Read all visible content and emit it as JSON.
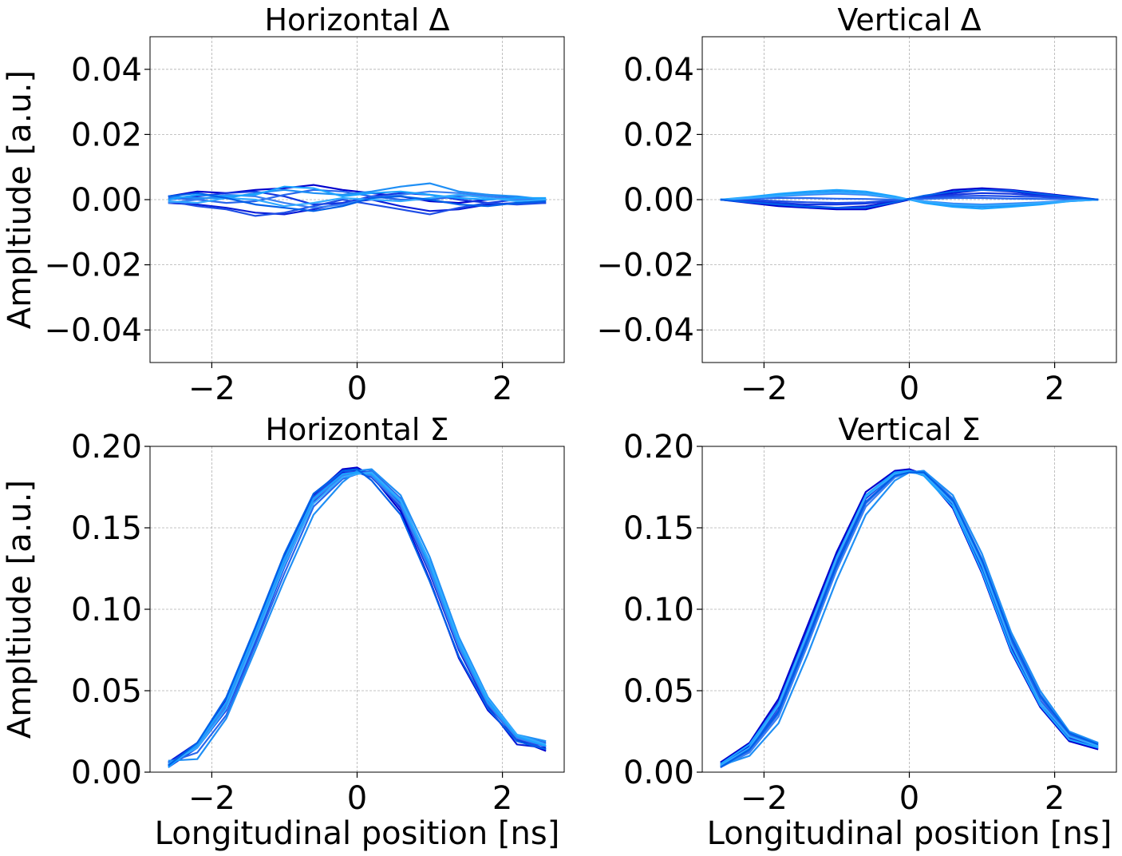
{
  "figure": {
    "line_colors": [
      "#0000cd",
      "#0a1ed8",
      "#1437e0",
      "#1e4ee6",
      "#2866ec",
      "#3a80f2",
      "#1f8ff5",
      "#1aa3ff",
      "#33aaff",
      "#0060e8"
    ],
    "grid_color": "#b0b0b0"
  },
  "chart_data": [
    {
      "type": "line",
      "title": "Horizontal Δ",
      "xlabel": "",
      "ylabel": "Ampltiude [a.u.]",
      "xlim": [
        -2.85,
        2.85
      ],
      "ylim": [
        -0.05,
        0.05
      ],
      "xticks": [
        -2,
        0,
        2
      ],
      "xtick_labels": [
        "−2",
        "0",
        "2"
      ],
      "yticks": [
        0.04,
        0.02,
        0.0,
        -0.02,
        -0.04
      ],
      "ytick_labels": [
        "0.04",
        "0.02",
        "0.00",
        "−0.02",
        "−0.04"
      ],
      "grid": true,
      "x": [
        -2.6,
        -2.2,
        -1.8,
        -1.4,
        -1.0,
        -0.6,
        -0.2,
        0.2,
        0.6,
        1.0,
        1.4,
        1.8,
        2.2,
        2.6
      ],
      "series": [
        {
          "values": [
            0.001,
            0.0025,
            0.002,
            0.003,
            0.0035,
            0.0045,
            0.003,
            0.002,
            0.001,
            -0.0005,
            -0.001,
            0.0,
            0.0005,
            0.0
          ]
        },
        {
          "values": [
            -0.001,
            -0.0015,
            -0.0025,
            -0.004,
            -0.0045,
            -0.003,
            -0.001,
            0.0,
            -0.002,
            -0.0035,
            -0.003,
            -0.0015,
            -0.001,
            -0.001
          ]
        },
        {
          "values": [
            0.0,
            0.001,
            0.002,
            0.0025,
            0.001,
            -0.0015,
            -0.001,
            0.001,
            0.002,
            0.0015,
            0.0,
            -0.001,
            0.0,
            0.0
          ]
        },
        {
          "values": [
            -0.0005,
            -0.002,
            -0.003,
            -0.005,
            -0.004,
            -0.002,
            0.0,
            -0.0015,
            -0.003,
            -0.0045,
            -0.0025,
            -0.001,
            -0.0015,
            -0.001
          ]
        },
        {
          "values": [
            0.0005,
            0.0,
            -0.001,
            -0.0005,
            0.0015,
            0.003,
            0.0025,
            0.001,
            0.0,
            0.0,
            0.001,
            0.0015,
            0.0005,
            0.0
          ]
        },
        {
          "values": [
            -0.001,
            0.0,
            0.0015,
            0.001,
            -0.001,
            -0.0025,
            -0.0015,
            0.0005,
            0.0015,
            0.0025,
            0.002,
            0.001,
            0.0,
            -0.0005
          ]
        },
        {
          "values": [
            0.001,
            0.0005,
            0.0005,
            0.002,
            0.003,
            0.002,
            0.0015,
            0.0025,
            0.004,
            0.005,
            0.0025,
            0.0015,
            0.001,
            0.0
          ]
        },
        {
          "values": [
            0.0,
            0.0015,
            0.001,
            0.0015,
            0.004,
            0.0035,
            0.001,
            0.002,
            0.0025,
            0.0015,
            0.0005,
            0.0,
            0.0005,
            0.0005
          ]
        },
        {
          "values": [
            -0.0005,
            -0.001,
            0.0005,
            0.0,
            -0.002,
            -0.001,
            0.0005,
            0.0,
            -0.0005,
            0.0005,
            0.0015,
            0.0005,
            -0.0005,
            0.0
          ]
        },
        {
          "values": [
            0.001,
            0.002,
            0.0005,
            -0.0015,
            -0.0025,
            -0.0035,
            -0.002,
            0.0005,
            0.001,
            0.0,
            -0.0015,
            -0.002,
            -0.001,
            -0.0005
          ]
        }
      ]
    },
    {
      "type": "line",
      "title": "Vertical Δ",
      "xlabel": "",
      "ylabel": "",
      "xlim": [
        -2.85,
        2.85
      ],
      "ylim": [
        -0.05,
        0.05
      ],
      "xticks": [
        -2,
        0,
        2
      ],
      "xtick_labels": [
        "−2",
        "0",
        "2"
      ],
      "yticks": [
        0.04,
        0.02,
        0.0,
        -0.02,
        -0.04
      ],
      "ytick_labels": [
        "0.04",
        "0.02",
        "0.00",
        "−0.02",
        "−0.04"
      ],
      "grid": true,
      "x": [
        -2.6,
        -2.2,
        -1.8,
        -1.4,
        -1.0,
        -0.6,
        -0.2,
        0.2,
        0.6,
        1.0,
        1.4,
        1.8,
        2.2,
        2.6
      ],
      "series": [
        {
          "values": [
            0.0,
            -0.001,
            -0.002,
            -0.0025,
            -0.003,
            -0.003,
            -0.001,
            0.001,
            0.003,
            0.0035,
            0.003,
            0.002,
            0.001,
            0.0
          ]
        },
        {
          "values": [
            0.0,
            -0.0005,
            -0.0015,
            -0.002,
            -0.0025,
            -0.002,
            -0.0005,
            0.001,
            0.002,
            0.003,
            0.0025,
            0.0015,
            0.0005,
            0.0
          ]
        },
        {
          "values": [
            0.0,
            -0.0005,
            -0.001,
            -0.0015,
            -0.0015,
            -0.0012,
            -0.0003,
            0.0008,
            0.0015,
            0.002,
            0.0018,
            0.0012,
            0.0005,
            0.0
          ]
        },
        {
          "values": [
            0.0,
            0.0,
            -0.0005,
            -0.0008,
            -0.001,
            -0.0008,
            -0.0002,
            0.0005,
            0.001,
            0.0012,
            0.001,
            0.0008,
            0.0003,
            0.0
          ]
        },
        {
          "values": [
            0.0,
            0.0003,
            0.0005,
            0.0005,
            0.0003,
            0.0002,
            0.0,
            0.0002,
            0.0005,
            0.0005,
            0.0003,
            0.0002,
            0.0001,
            0.0
          ]
        },
        {
          "values": [
            0.0,
            0.0005,
            0.001,
            0.0015,
            0.0018,
            0.0015,
            0.0005,
            -0.0005,
            -0.0012,
            -0.0015,
            -0.0012,
            -0.0008,
            -0.0003,
            0.0
          ]
        },
        {
          "values": [
            0.0,
            0.0005,
            0.0015,
            0.002,
            0.0025,
            0.002,
            0.0008,
            -0.0008,
            -0.0018,
            -0.0022,
            -0.0018,
            -0.0012,
            -0.0005,
            0.0
          ]
        },
        {
          "values": [
            0.0,
            0.0008,
            0.0018,
            0.0025,
            0.003,
            0.0025,
            0.001,
            -0.001,
            -0.0022,
            -0.0028,
            -0.0022,
            -0.0015,
            -0.0005,
            0.0
          ]
        },
        {
          "values": [
            0.0,
            0.0005,
            0.0012,
            0.0018,
            0.0022,
            0.0018,
            0.0006,
            -0.0006,
            -0.0015,
            -0.0018,
            -0.0015,
            -0.001,
            -0.0004,
            0.0
          ]
        },
        {
          "values": [
            0.0,
            -0.0008,
            -0.0015,
            -0.0022,
            -0.0025,
            -0.0025,
            -0.0008,
            0.0012,
            0.0025,
            0.003,
            0.0028,
            0.0018,
            0.0008,
            0.0
          ]
        }
      ]
    },
    {
      "type": "line",
      "title": "Horizontal Σ",
      "xlabel": "Longitudinal position [ns]",
      "ylabel": "Ampltiude [a.u.]",
      "xlim": [
        -2.85,
        2.85
      ],
      "ylim": [
        0.0,
        0.2
      ],
      "xticks": [
        -2,
        0,
        2
      ],
      "xtick_labels": [
        "−2",
        "0",
        "2"
      ],
      "yticks": [
        0.2,
        0.15,
        0.1,
        0.05,
        0.0
      ],
      "ytick_labels": [
        "0.20",
        "0.15",
        "0.10",
        "0.05",
        "0.00"
      ],
      "grid": true,
      "x": [
        -2.6,
        -2.2,
        -1.8,
        -1.4,
        -1.0,
        -0.6,
        -0.2,
        0.0,
        0.2,
        0.6,
        1.0,
        1.4,
        1.8,
        2.2,
        2.6
      ],
      "series": [
        {
          "values": [
            0.004,
            0.016,
            0.04,
            0.083,
            0.13,
            0.17,
            0.186,
            0.187,
            0.182,
            0.16,
            0.118,
            0.07,
            0.038,
            0.02,
            0.013
          ]
        },
        {
          "values": [
            0.006,
            0.018,
            0.044,
            0.088,
            0.132,
            0.168,
            0.184,
            0.186,
            0.183,
            0.162,
            0.122,
            0.075,
            0.04,
            0.017,
            0.015
          ]
        },
        {
          "values": [
            0.003,
            0.015,
            0.038,
            0.08,
            0.126,
            0.166,
            0.183,
            0.185,
            0.184,
            0.165,
            0.125,
            0.078,
            0.042,
            0.02,
            0.016
          ]
        },
        {
          "values": [
            0.005,
            0.017,
            0.042,
            0.085,
            0.128,
            0.169,
            0.185,
            0.184,
            0.181,
            0.163,
            0.123,
            0.076,
            0.041,
            0.021,
            0.014
          ]
        },
        {
          "values": [
            0.006,
            0.012,
            0.035,
            0.078,
            0.122,
            0.163,
            0.18,
            0.183,
            0.185,
            0.168,
            0.128,
            0.08,
            0.044,
            0.022,
            0.018
          ]
        },
        {
          "values": [
            0.004,
            0.016,
            0.041,
            0.084,
            0.129,
            0.167,
            0.182,
            0.184,
            0.182,
            0.164,
            0.124,
            0.077,
            0.042,
            0.021,
            0.016
          ]
        },
        {
          "values": [
            0.007,
            0.008,
            0.033,
            0.075,
            0.118,
            0.158,
            0.178,
            0.185,
            0.186,
            0.17,
            0.132,
            0.083,
            0.046,
            0.023,
            0.019
          ]
        },
        {
          "values": [
            0.003,
            0.017,
            0.043,
            0.086,
            0.131,
            0.168,
            0.183,
            0.184,
            0.183,
            0.166,
            0.127,
            0.079,
            0.043,
            0.022,
            0.016
          ]
        },
        {
          "values": [
            0.005,
            0.015,
            0.039,
            0.082,
            0.127,
            0.165,
            0.181,
            0.183,
            0.184,
            0.167,
            0.129,
            0.081,
            0.045,
            0.023,
            0.017
          ]
        },
        {
          "values": [
            0.004,
            0.018,
            0.046,
            0.089,
            0.134,
            0.171,
            0.185,
            0.186,
            0.179,
            0.158,
            0.117,
            0.071,
            0.039,
            0.019,
            0.014
          ]
        }
      ]
    },
    {
      "type": "line",
      "title": "Vertical Σ",
      "xlabel": "Longitudinal position [ns]",
      "ylabel": "",
      "xlim": [
        -2.85,
        2.85
      ],
      "ylim": [
        0.0,
        0.2
      ],
      "xticks": [
        -2,
        0,
        2
      ],
      "xtick_labels": [
        "−2",
        "0",
        "2"
      ],
      "yticks": [
        0.2,
        0.15,
        0.1,
        0.05,
        0.0
      ],
      "ytick_labels": [
        "0.20",
        "0.15",
        "0.10",
        "0.05",
        "0.00"
      ],
      "grid": true,
      "x": [
        -2.6,
        -2.2,
        -1.8,
        -1.4,
        -1.0,
        -0.6,
        -0.2,
        0.0,
        0.2,
        0.6,
        1.0,
        1.4,
        1.8,
        2.2,
        2.6
      ],
      "series": [
        {
          "values": [
            0.006,
            0.018,
            0.045,
            0.09,
            0.135,
            0.172,
            0.185,
            0.186,
            0.183,
            0.162,
            0.122,
            0.074,
            0.04,
            0.019,
            0.014
          ]
        },
        {
          "values": [
            0.005,
            0.016,
            0.043,
            0.088,
            0.133,
            0.17,
            0.184,
            0.185,
            0.182,
            0.164,
            0.124,
            0.076,
            0.041,
            0.02,
            0.015
          ]
        },
        {
          "values": [
            0.004,
            0.015,
            0.04,
            0.084,
            0.13,
            0.168,
            0.183,
            0.185,
            0.183,
            0.165,
            0.126,
            0.078,
            0.043,
            0.021,
            0.016
          ]
        },
        {
          "values": [
            0.004,
            0.014,
            0.038,
            0.082,
            0.128,
            0.166,
            0.182,
            0.184,
            0.184,
            0.166,
            0.128,
            0.08,
            0.044,
            0.022,
            0.016
          ]
        },
        {
          "values": [
            0.003,
            0.013,
            0.036,
            0.08,
            0.126,
            0.165,
            0.182,
            0.185,
            0.184,
            0.167,
            0.129,
            0.082,
            0.046,
            0.023,
            0.017
          ]
        },
        {
          "values": [
            0.003,
            0.012,
            0.034,
            0.078,
            0.124,
            0.163,
            0.181,
            0.184,
            0.185,
            0.168,
            0.131,
            0.084,
            0.048,
            0.024,
            0.018
          ]
        },
        {
          "values": [
            0.004,
            0.01,
            0.03,
            0.072,
            0.118,
            0.158,
            0.179,
            0.184,
            0.185,
            0.17,
            0.134,
            0.086,
            0.05,
            0.025,
            0.018
          ]
        },
        {
          "values": [
            0.005,
            0.017,
            0.042,
            0.086,
            0.132,
            0.17,
            0.184,
            0.185,
            0.182,
            0.163,
            0.123,
            0.075,
            0.041,
            0.02,
            0.015
          ]
        },
        {
          "values": [
            0.004,
            0.015,
            0.041,
            0.085,
            0.131,
            0.169,
            0.183,
            0.184,
            0.183,
            0.165,
            0.127,
            0.079,
            0.043,
            0.022,
            0.016
          ]
        },
        {
          "values": [
            0.003,
            0.014,
            0.037,
            0.081,
            0.127,
            0.166,
            0.182,
            0.184,
            0.184,
            0.167,
            0.13,
            0.083,
            0.047,
            0.024,
            0.017
          ]
        }
      ]
    }
  ]
}
